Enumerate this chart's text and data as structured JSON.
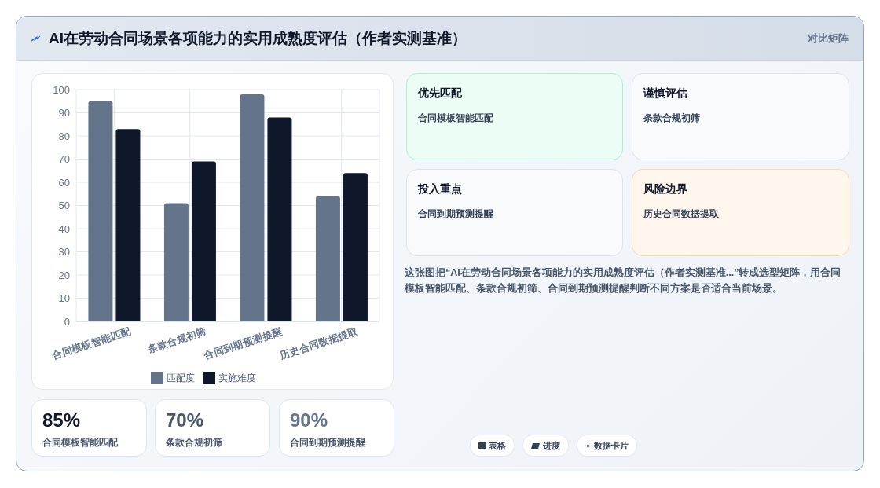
{
  "chart_data": [
    {
      "type": "bar",
      "title": "AI在劳动合同场景各项能力的实用成熟度评估（作者实测基准）",
      "categories": [
        "合同模板智能匹配",
        "条款合规初筛",
        "合同到期预测提醒",
        "历史合同数据提取"
      ],
      "series": [
        {
          "name": "匹配度",
          "color": "#64748b",
          "values": [
            95,
            51,
            98,
            54
          ]
        },
        {
          "name": "实施难度",
          "color": "#0f172a",
          "values": [
            83,
            69,
            88,
            64
          ]
        }
      ],
      "ylim": [
        0,
        100
      ],
      "yticks": [
        0,
        10,
        20,
        30,
        40,
        50,
        60,
        70,
        80,
        90,
        100
      ],
      "grid": true,
      "legend": "bottom"
    },
    {
      "type": "other",
      "annotations": [
        "对比矩阵"
      ]
    },
    {
      "type": "other",
      "title": "优先匹配",
      "annotations": [
        "合同模板智能匹配"
      ]
    },
    {
      "type": "other",
      "title": "谨慎评估",
      "annotations": [
        "条款合规初筛"
      ]
    },
    {
      "type": "other",
      "title": "投入重点",
      "annotations": [
        "合同到期预测提醒"
      ]
    },
    {
      "type": "other",
      "title": "风险边界",
      "annotations": [
        "历史合同数据提取"
      ]
    },
    {
      "type": "other",
      "annotations": [
        "这张图把“AI在劳动合同场景各项能力的实用成熟度评估（作者实测基准...”转成选型矩阵，用合同模板智能匹配、条款合规初筛、合同到期预测提醒判断不同方案是否适合当前场景。"
      ]
    },
    {
      "type": "other",
      "annotations": [
        "85%",
        "合同模板智能匹配"
      ]
    },
    {
      "type": "other",
      "annotations": [
        "70%",
        "条款合规初筛"
      ]
    },
    {
      "type": "other",
      "annotations": [
        "90%",
        "合同到期预测提醒"
      ]
    },
    {
      "type": "other",
      "annotations": [
        "表格",
        "进度",
        "数据卡片"
      ]
    }
  ]
}
